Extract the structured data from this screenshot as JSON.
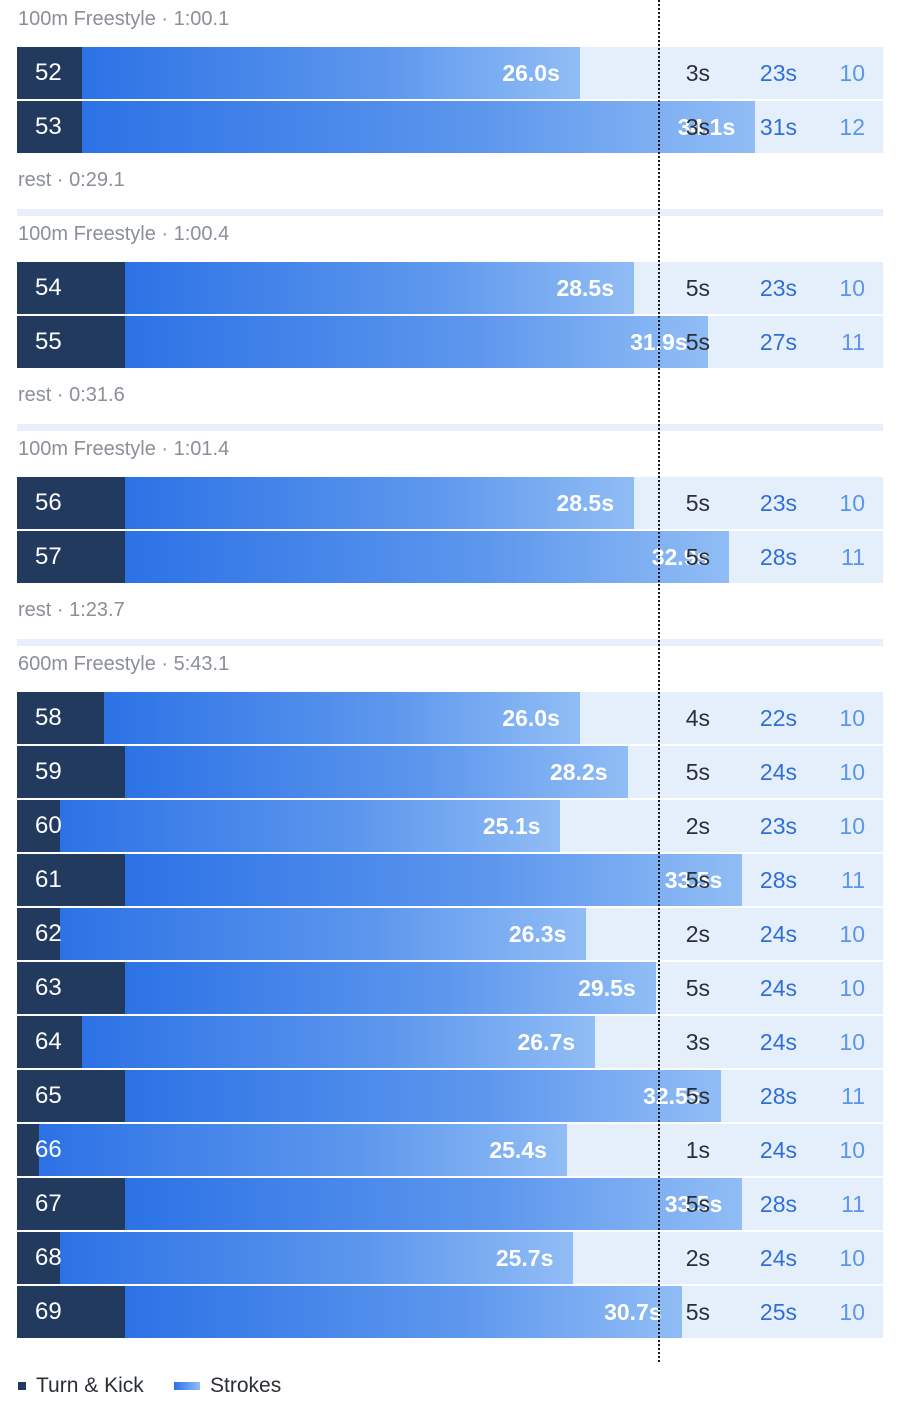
{
  "chart_data": {
    "type": "bar",
    "orientation": "horizontal-stacked",
    "title": "",
    "axis_max_seconds": 40,
    "reference_line_seconds": 29.6,
    "legend": [
      {
        "name": "Turn & Kick",
        "color": "#223a5e"
      },
      {
        "name": "Strokes",
        "color": "#2c72e6"
      }
    ],
    "sets": [
      {
        "title": "100m Freestyle · 1:00.1",
        "rest": "rest · 0:29.1",
        "laps": [
          {
            "lap": "52",
            "split": 26.0,
            "split_label": "26.0s",
            "turn": 3,
            "turn_label": "3s",
            "stroke_label": "23s",
            "strokes": "10"
          },
          {
            "lap": "53",
            "split": 34.1,
            "split_label": "34.1s",
            "turn": 3,
            "turn_label": "3s",
            "stroke_label": "31s",
            "strokes": "12"
          }
        ]
      },
      {
        "title": "100m Freestyle · 1:00.4",
        "rest": "rest · 0:31.6",
        "laps": [
          {
            "lap": "54",
            "split": 28.5,
            "split_label": "28.5s",
            "turn": 5,
            "turn_label": "5s",
            "stroke_label": "23s",
            "strokes": "10"
          },
          {
            "lap": "55",
            "split": 31.9,
            "split_label": "31.9s",
            "turn": 5,
            "turn_label": "5s",
            "stroke_label": "27s",
            "strokes": "11"
          }
        ]
      },
      {
        "title": "100m Freestyle · 1:01.4",
        "rest": "rest · 1:23.7",
        "laps": [
          {
            "lap": "56",
            "split": 28.5,
            "split_label": "28.5s",
            "turn": 5,
            "turn_label": "5s",
            "stroke_label": "23s",
            "strokes": "10"
          },
          {
            "lap": "57",
            "split": 32.9,
            "split_label": "32.9s",
            "turn": 5,
            "turn_label": "5s",
            "stroke_label": "28s",
            "strokes": "11"
          }
        ]
      },
      {
        "title": "600m Freestyle · 5:43.1",
        "rest": "",
        "laps": [
          {
            "lap": "58",
            "split": 26.0,
            "split_label": "26.0s",
            "turn": 4,
            "turn_label": "4s",
            "stroke_label": "22s",
            "strokes": "10"
          },
          {
            "lap": "59",
            "split": 28.2,
            "split_label": "28.2s",
            "turn": 5,
            "turn_label": "5s",
            "stroke_label": "24s",
            "strokes": "10"
          },
          {
            "lap": "60",
            "split": 25.1,
            "split_label": "25.1s",
            "turn": 2,
            "turn_label": "2s",
            "stroke_label": "23s",
            "strokes": "10"
          },
          {
            "lap": "61",
            "split": 33.5,
            "split_label": "33.5s",
            "turn": 5,
            "turn_label": "5s",
            "stroke_label": "28s",
            "strokes": "11"
          },
          {
            "lap": "62",
            "split": 26.3,
            "split_label": "26.3s",
            "turn": 2,
            "turn_label": "2s",
            "stroke_label": "24s",
            "strokes": "10"
          },
          {
            "lap": "63",
            "split": 29.5,
            "split_label": "29.5s",
            "turn": 5,
            "turn_label": "5s",
            "stroke_label": "24s",
            "strokes": "10"
          },
          {
            "lap": "64",
            "split": 26.7,
            "split_label": "26.7s",
            "turn": 3,
            "turn_label": "3s",
            "stroke_label": "24s",
            "strokes": "10"
          },
          {
            "lap": "65",
            "split": 32.5,
            "split_label": "32.5s",
            "turn": 5,
            "turn_label": "5s",
            "stroke_label": "28s",
            "strokes": "11"
          },
          {
            "lap": "66",
            "split": 25.4,
            "split_label": "25.4s",
            "turn": 1,
            "turn_label": "1s",
            "stroke_label": "24s",
            "strokes": "10"
          },
          {
            "lap": "67",
            "split": 33.5,
            "split_label": "33.5s",
            "turn": 5,
            "turn_label": "5s",
            "stroke_label": "28s",
            "strokes": "11"
          },
          {
            "lap": "68",
            "split": 25.7,
            "split_label": "25.7s",
            "turn": 2,
            "turn_label": "2s",
            "stroke_label": "24s",
            "strokes": "10"
          },
          {
            "lap": "69",
            "split": 30.7,
            "split_label": "30.7s",
            "turn": 5,
            "turn_label": "5s",
            "stroke_label": "25s",
            "strokes": "10"
          }
        ]
      }
    ]
  }
}
